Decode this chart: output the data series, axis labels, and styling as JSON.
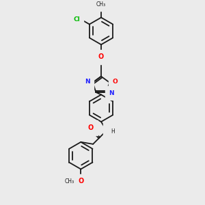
{
  "background_color": "#ebebeb",
  "bond_color": "#1a1a1a",
  "atom_colors": {
    "N": "#2020ff",
    "O": "#ff0000",
    "Cl": "#00bb00",
    "C": "#1a1a1a",
    "H": "#1a1a1a"
  },
  "figsize": [
    3.0,
    3.0
  ],
  "dpi": 100,
  "lw": 1.3
}
